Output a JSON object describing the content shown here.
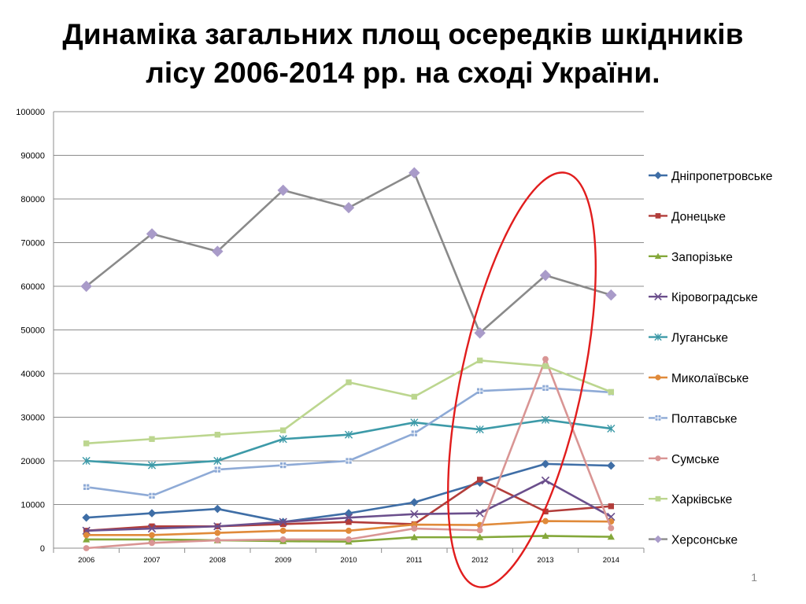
{
  "slide": {
    "title_line1": "Динаміка загальних площ осередків шкідників",
    "title_line2": "лісу 2006-2014 рр. на сході України.",
    "page_number": "1"
  },
  "chart_data": {
    "type": "line",
    "title": "",
    "xlabel": "",
    "ylabel": "",
    "categories": [
      "2006",
      "2007",
      "2008",
      "2009",
      "2010",
      "2011",
      "2012",
      "2013",
      "2014"
    ],
    "ylim": [
      0,
      100000
    ],
    "yticks": [
      0,
      10000,
      20000,
      30000,
      40000,
      50000,
      60000,
      70000,
      80000,
      90000,
      100000
    ],
    "grid": "horizontal",
    "legend_position": "right",
    "series": [
      {
        "name": "Дніпропетровське",
        "color": "#3f6ea6",
        "marker": "diamond",
        "values": [
          7000,
          8000,
          9000,
          6000,
          8000,
          10500,
          15000,
          19300,
          18900
        ]
      },
      {
        "name": "Донецьке",
        "color": "#b23d3a",
        "marker": "square",
        "values": [
          4000,
          5000,
          5000,
          5500,
          6000,
          5500,
          15700,
          8400,
          9600
        ]
      },
      {
        "name": "Запорізьке",
        "color": "#84a83a",
        "marker": "triangle",
        "values": [
          2000,
          2000,
          1800,
          1600,
          1500,
          2500,
          2500,
          2800,
          2600
        ]
      },
      {
        "name": "Кіровоградське",
        "color": "#6b4f8c",
        "marker": "x",
        "values": [
          4000,
          4500,
          5000,
          6000,
          7000,
          7800,
          8000,
          15500,
          7200
        ]
      },
      {
        "name": "Луганське",
        "color": "#3d9aa8",
        "marker": "star",
        "values": [
          20000,
          19000,
          20000,
          25000,
          26000,
          28800,
          27200,
          29400,
          27400
        ]
      },
      {
        "name": "Миколаївське",
        "color": "#e08a3a",
        "marker": "circle",
        "values": [
          3000,
          3000,
          3500,
          4000,
          4000,
          5400,
          5300,
          6200,
          6100
        ]
      },
      {
        "name": "Полтавське",
        "color": "#8eaad6",
        "marker": "plus",
        "values": [
          14000,
          12000,
          18000,
          19000,
          20000,
          26300,
          36000,
          36700,
          35700
        ]
      },
      {
        "name": "Сумське",
        "color": "#d99594",
        "marker": "circle",
        "values": [
          0,
          1200,
          1800,
          2000,
          2000,
          4500,
          4100,
          43300,
          4600
        ]
      },
      {
        "name": "Харківське",
        "color": "#bcd68f",
        "marker": "square",
        "values": [
          24000,
          25000,
          26000,
          27000,
          38000,
          34700,
          43000,
          41700,
          35800
        ]
      },
      {
        "name": "Херсонське",
        "color": "#8a8a8a",
        "marker": "diamond",
        "marker_color": "#a99bc9",
        "values": [
          60000,
          72000,
          68000,
          82000,
          78000,
          86000,
          49300,
          62500,
          58000
        ]
      }
    ],
    "annotation": {
      "shape": "ellipse",
      "color": "#e11d1d",
      "around_categories": [
        "2012",
        "2013",
        "2014"
      ]
    }
  }
}
